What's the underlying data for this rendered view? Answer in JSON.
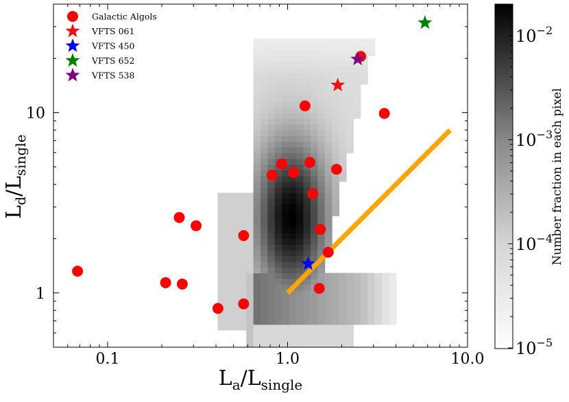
{
  "chart_data": {
    "type": "scatter",
    "xscale": "log",
    "yscale": "log",
    "xlim": [
      0.05,
      10.0
    ],
    "ylim": [
      0.5,
      40
    ],
    "xlabel_base": "L",
    "xlabel_sub": "a",
    "xlabel_den": "/L",
    "xlabel_den_sub": "single",
    "ylabel_base": "L",
    "ylabel_sub": "d",
    "ylabel_den": "/L",
    "ylabel_den_sub": "single",
    "x_ticks": [
      {
        "value": 0.1,
        "label": "0.1"
      },
      {
        "value": 1.0,
        "label": "1.0"
      },
      {
        "value": 10.0,
        "label": "10.0"
      }
    ],
    "y_ticks": [
      {
        "value": 1,
        "label": "1"
      },
      {
        "value": 10,
        "label": "10"
      }
    ],
    "galactic_algols": {
      "name": "Galactic Algols",
      "color": "#ff0000",
      "points": [
        {
          "x": 0.068,
          "y": 1.32
        },
        {
          "x": 0.21,
          "y": 1.14
        },
        {
          "x": 0.25,
          "y": 2.62
        },
        {
          "x": 0.26,
          "y": 1.12
        },
        {
          "x": 0.31,
          "y": 2.36
        },
        {
          "x": 0.41,
          "y": 0.82
        },
        {
          "x": 0.57,
          "y": 2.08
        },
        {
          "x": 0.57,
          "y": 0.87
        },
        {
          "x": 0.82,
          "y": 4.5
        },
        {
          "x": 0.93,
          "y": 5.2
        },
        {
          "x": 1.08,
          "y": 4.65
        },
        {
          "x": 1.25,
          "y": 10.9
        },
        {
          "x": 1.33,
          "y": 5.3
        },
        {
          "x": 1.38,
          "y": 3.55
        },
        {
          "x": 1.52,
          "y": 2.25
        },
        {
          "x": 1.5,
          "y": 1.06
        },
        {
          "x": 1.68,
          "y": 1.68
        },
        {
          "x": 1.87,
          "y": 4.85
        },
        {
          "x": 2.55,
          "y": 20.5
        },
        {
          "x": 3.45,
          "y": 9.9
        }
      ]
    },
    "stars": [
      {
        "name": "VFTS 061",
        "x": 1.9,
        "y": 14.2,
        "color": "#ee1111"
      },
      {
        "name": "VFTS 450",
        "x": 1.3,
        "y": 1.45,
        "color": "#0000ff"
      },
      {
        "name": "VFTS 652",
        "x": 5.8,
        "y": 31.5,
        "color": "#008000"
      },
      {
        "name": "VFTS 538",
        "x": 2.45,
        "y": 19.8,
        "color": "#800080"
      }
    ],
    "line": {
      "x": [
        1.0,
        8.0
      ],
      "y": [
        1.0,
        8.0
      ],
      "color": "#ffa500"
    },
    "colorbar": {
      "label": "Number fraction in each pixel",
      "range": [
        1e-05,
        0.02
      ],
      "ticks": [
        {
          "value": 1e-05,
          "base": "10",
          "exp": "−5"
        },
        {
          "value": 0.0001,
          "base": "10",
          "exp": "−4"
        },
        {
          "value": 0.001,
          "base": "10",
          "exp": "−3"
        },
        {
          "value": 0.01,
          "base": "10",
          "exp": "−2"
        }
      ]
    },
    "legend_position": "top-left"
  }
}
